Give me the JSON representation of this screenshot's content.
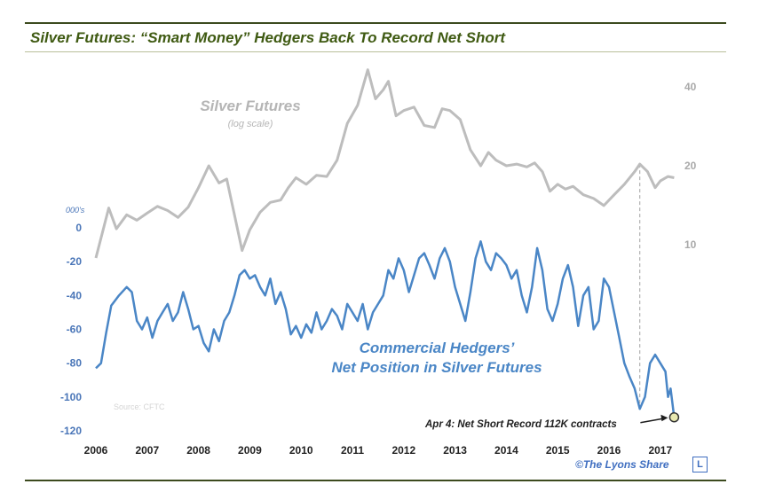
{
  "title": "Silver Futures: “Smart Money” Hedgers Back To Record Net Short",
  "credit": "©The Lyons Share",
  "logo_letter": "L",
  "chart_data": {
    "type": "line",
    "title": "Silver Futures: “Smart Money” Hedgers Back To Record Net Short",
    "x_ticks": [
      "2006",
      "2007",
      "2008",
      "2009",
      "2010",
      "2011",
      "2012",
      "2013",
      "2014",
      "2015",
      "2016",
      "2017"
    ],
    "y_left": {
      "unit_label": "000's",
      "ticks": [
        0,
        -20,
        -40,
        -60,
        -80,
        -100,
        -120
      ],
      "ylim": [
        -120,
        0
      ]
    },
    "y_right": {
      "scale": "log",
      "ticks": [
        10,
        20,
        40
      ]
    },
    "series": [
      {
        "name": "Silver Futures",
        "subtitle": "(log scale)",
        "axis": "right",
        "color": "#bdbdbd",
        "points": [
          [
            2006.0,
            8.9
          ],
          [
            2006.1,
            10.6
          ],
          [
            2006.25,
            13.8
          ],
          [
            2006.4,
            11.5
          ],
          [
            2006.6,
            13.0
          ],
          [
            2006.8,
            12.4
          ],
          [
            2007.0,
            13.2
          ],
          [
            2007.2,
            14.0
          ],
          [
            2007.4,
            13.5
          ],
          [
            2007.6,
            12.7
          ],
          [
            2007.8,
            13.9
          ],
          [
            2008.0,
            16.5
          ],
          [
            2008.2,
            20.0
          ],
          [
            2008.4,
            17.2
          ],
          [
            2008.55,
            17.8
          ],
          [
            2008.7,
            13.0
          ],
          [
            2008.85,
            9.5
          ],
          [
            2009.0,
            11.4
          ],
          [
            2009.2,
            13.3
          ],
          [
            2009.4,
            14.5
          ],
          [
            2009.6,
            14.8
          ],
          [
            2009.75,
            16.5
          ],
          [
            2009.9,
            18.0
          ],
          [
            2010.1,
            17.0
          ],
          [
            2010.3,
            18.4
          ],
          [
            2010.5,
            18.2
          ],
          [
            2010.7,
            21.0
          ],
          [
            2010.9,
            29.0
          ],
          [
            2011.1,
            34.0
          ],
          [
            2011.3,
            46.5
          ],
          [
            2011.45,
            36.0
          ],
          [
            2011.6,
            39.0
          ],
          [
            2011.7,
            42.0
          ],
          [
            2011.85,
            31.0
          ],
          [
            2012.0,
            32.5
          ],
          [
            2012.2,
            33.5
          ],
          [
            2012.4,
            28.5
          ],
          [
            2012.6,
            28.0
          ],
          [
            2012.75,
            33.0
          ],
          [
            2012.9,
            32.5
          ],
          [
            2013.1,
            30.0
          ],
          [
            2013.3,
            23.0
          ],
          [
            2013.5,
            20.0
          ],
          [
            2013.65,
            22.5
          ],
          [
            2013.8,
            21.0
          ],
          [
            2014.0,
            20.0
          ],
          [
            2014.2,
            20.3
          ],
          [
            2014.4,
            19.8
          ],
          [
            2014.55,
            20.5
          ],
          [
            2014.7,
            19.0
          ],
          [
            2014.85,
            16.0
          ],
          [
            2015.0,
            17.0
          ],
          [
            2015.15,
            16.3
          ],
          [
            2015.3,
            16.7
          ],
          [
            2015.5,
            15.5
          ],
          [
            2015.7,
            15.0
          ],
          [
            2015.9,
            14.1
          ],
          [
            2016.1,
            15.5
          ],
          [
            2016.3,
            17.0
          ],
          [
            2016.5,
            19.0
          ],
          [
            2016.6,
            20.3
          ],
          [
            2016.75,
            19.0
          ],
          [
            2016.9,
            16.5
          ],
          [
            2017.0,
            17.5
          ],
          [
            2017.15,
            18.2
          ],
          [
            2017.27,
            18.0
          ]
        ]
      },
      {
        "name": "Commercial Hedgers’ Net Position in Silver Futures",
        "axis": "left",
        "color": "#4a86c6",
        "points": [
          [
            2006.0,
            -83
          ],
          [
            2006.1,
            -80
          ],
          [
            2006.2,
            -62
          ],
          [
            2006.3,
            -46
          ],
          [
            2006.45,
            -40
          ],
          [
            2006.6,
            -35
          ],
          [
            2006.7,
            -38
          ],
          [
            2006.8,
            -55
          ],
          [
            2006.9,
            -60
          ],
          [
            2007.0,
            -53
          ],
          [
            2007.1,
            -65
          ],
          [
            2007.2,
            -55
          ],
          [
            2007.3,
            -50
          ],
          [
            2007.4,
            -45
          ],
          [
            2007.5,
            -55
          ],
          [
            2007.6,
            -50
          ],
          [
            2007.7,
            -38
          ],
          [
            2007.8,
            -48
          ],
          [
            2007.9,
            -60
          ],
          [
            2008.0,
            -58
          ],
          [
            2008.1,
            -68
          ],
          [
            2008.2,
            -73
          ],
          [
            2008.3,
            -60
          ],
          [
            2008.4,
            -67
          ],
          [
            2008.5,
            -55
          ],
          [
            2008.6,
            -50
          ],
          [
            2008.7,
            -40
          ],
          [
            2008.8,
            -28
          ],
          [
            2008.9,
            -25
          ],
          [
            2009.0,
            -30
          ],
          [
            2009.1,
            -28
          ],
          [
            2009.2,
            -35
          ],
          [
            2009.3,
            -40
          ],
          [
            2009.4,
            -30
          ],
          [
            2009.5,
            -45
          ],
          [
            2009.6,
            -38
          ],
          [
            2009.7,
            -48
          ],
          [
            2009.8,
            -63
          ],
          [
            2009.9,
            -58
          ],
          [
            2010.0,
            -65
          ],
          [
            2010.1,
            -57
          ],
          [
            2010.2,
            -62
          ],
          [
            2010.3,
            -50
          ],
          [
            2010.4,
            -60
          ],
          [
            2010.5,
            -55
          ],
          [
            2010.6,
            -48
          ],
          [
            2010.7,
            -52
          ],
          [
            2010.8,
            -60
          ],
          [
            2010.9,
            -45
          ],
          [
            2011.0,
            -50
          ],
          [
            2011.1,
            -55
          ],
          [
            2011.2,
            -45
          ],
          [
            2011.3,
            -60
          ],
          [
            2011.4,
            -50
          ],
          [
            2011.5,
            -45
          ],
          [
            2011.6,
            -40
          ],
          [
            2011.7,
            -25
          ],
          [
            2011.8,
            -30
          ],
          [
            2011.9,
            -18
          ],
          [
            2012.0,
            -25
          ],
          [
            2012.1,
            -38
          ],
          [
            2012.2,
            -28
          ],
          [
            2012.3,
            -18
          ],
          [
            2012.4,
            -15
          ],
          [
            2012.5,
            -22
          ],
          [
            2012.6,
            -30
          ],
          [
            2012.7,
            -18
          ],
          [
            2012.8,
            -12
          ],
          [
            2012.9,
            -20
          ],
          [
            2013.0,
            -35
          ],
          [
            2013.1,
            -45
          ],
          [
            2013.2,
            -55
          ],
          [
            2013.3,
            -38
          ],
          [
            2013.4,
            -18
          ],
          [
            2013.5,
            -8
          ],
          [
            2013.6,
            -20
          ],
          [
            2013.7,
            -25
          ],
          [
            2013.8,
            -15
          ],
          [
            2013.9,
            -18
          ],
          [
            2014.0,
            -22
          ],
          [
            2014.1,
            -30
          ],
          [
            2014.2,
            -25
          ],
          [
            2014.3,
            -40
          ],
          [
            2014.4,
            -50
          ],
          [
            2014.5,
            -35
          ],
          [
            2014.6,
            -12
          ],
          [
            2014.7,
            -25
          ],
          [
            2014.8,
            -48
          ],
          [
            2014.9,
            -55
          ],
          [
            2015.0,
            -45
          ],
          [
            2015.1,
            -30
          ],
          [
            2015.2,
            -22
          ],
          [
            2015.3,
            -35
          ],
          [
            2015.4,
            -58
          ],
          [
            2015.5,
            -40
          ],
          [
            2015.6,
            -35
          ],
          [
            2015.7,
            -60
          ],
          [
            2015.8,
            -55
          ],
          [
            2015.9,
            -30
          ],
          [
            2016.0,
            -35
          ],
          [
            2016.1,
            -50
          ],
          [
            2016.2,
            -65
          ],
          [
            2016.3,
            -80
          ],
          [
            2016.4,
            -88
          ],
          [
            2016.5,
            -95
          ],
          [
            2016.6,
            -107
          ],
          [
            2016.7,
            -100
          ],
          [
            2016.8,
            -80
          ],
          [
            2016.9,
            -75
          ],
          [
            2017.0,
            -80
          ],
          [
            2017.1,
            -85
          ],
          [
            2017.15,
            -100
          ],
          [
            2017.2,
            -95
          ],
          [
            2017.27,
            -112
          ]
        ]
      }
    ],
    "source": "Source: CFTC",
    "reference_line_x": 2016.6,
    "annotation": {
      "text": "Apr 4: Net Short Record 112K contracts",
      "x": 2017.27,
      "y": -112
    }
  }
}
